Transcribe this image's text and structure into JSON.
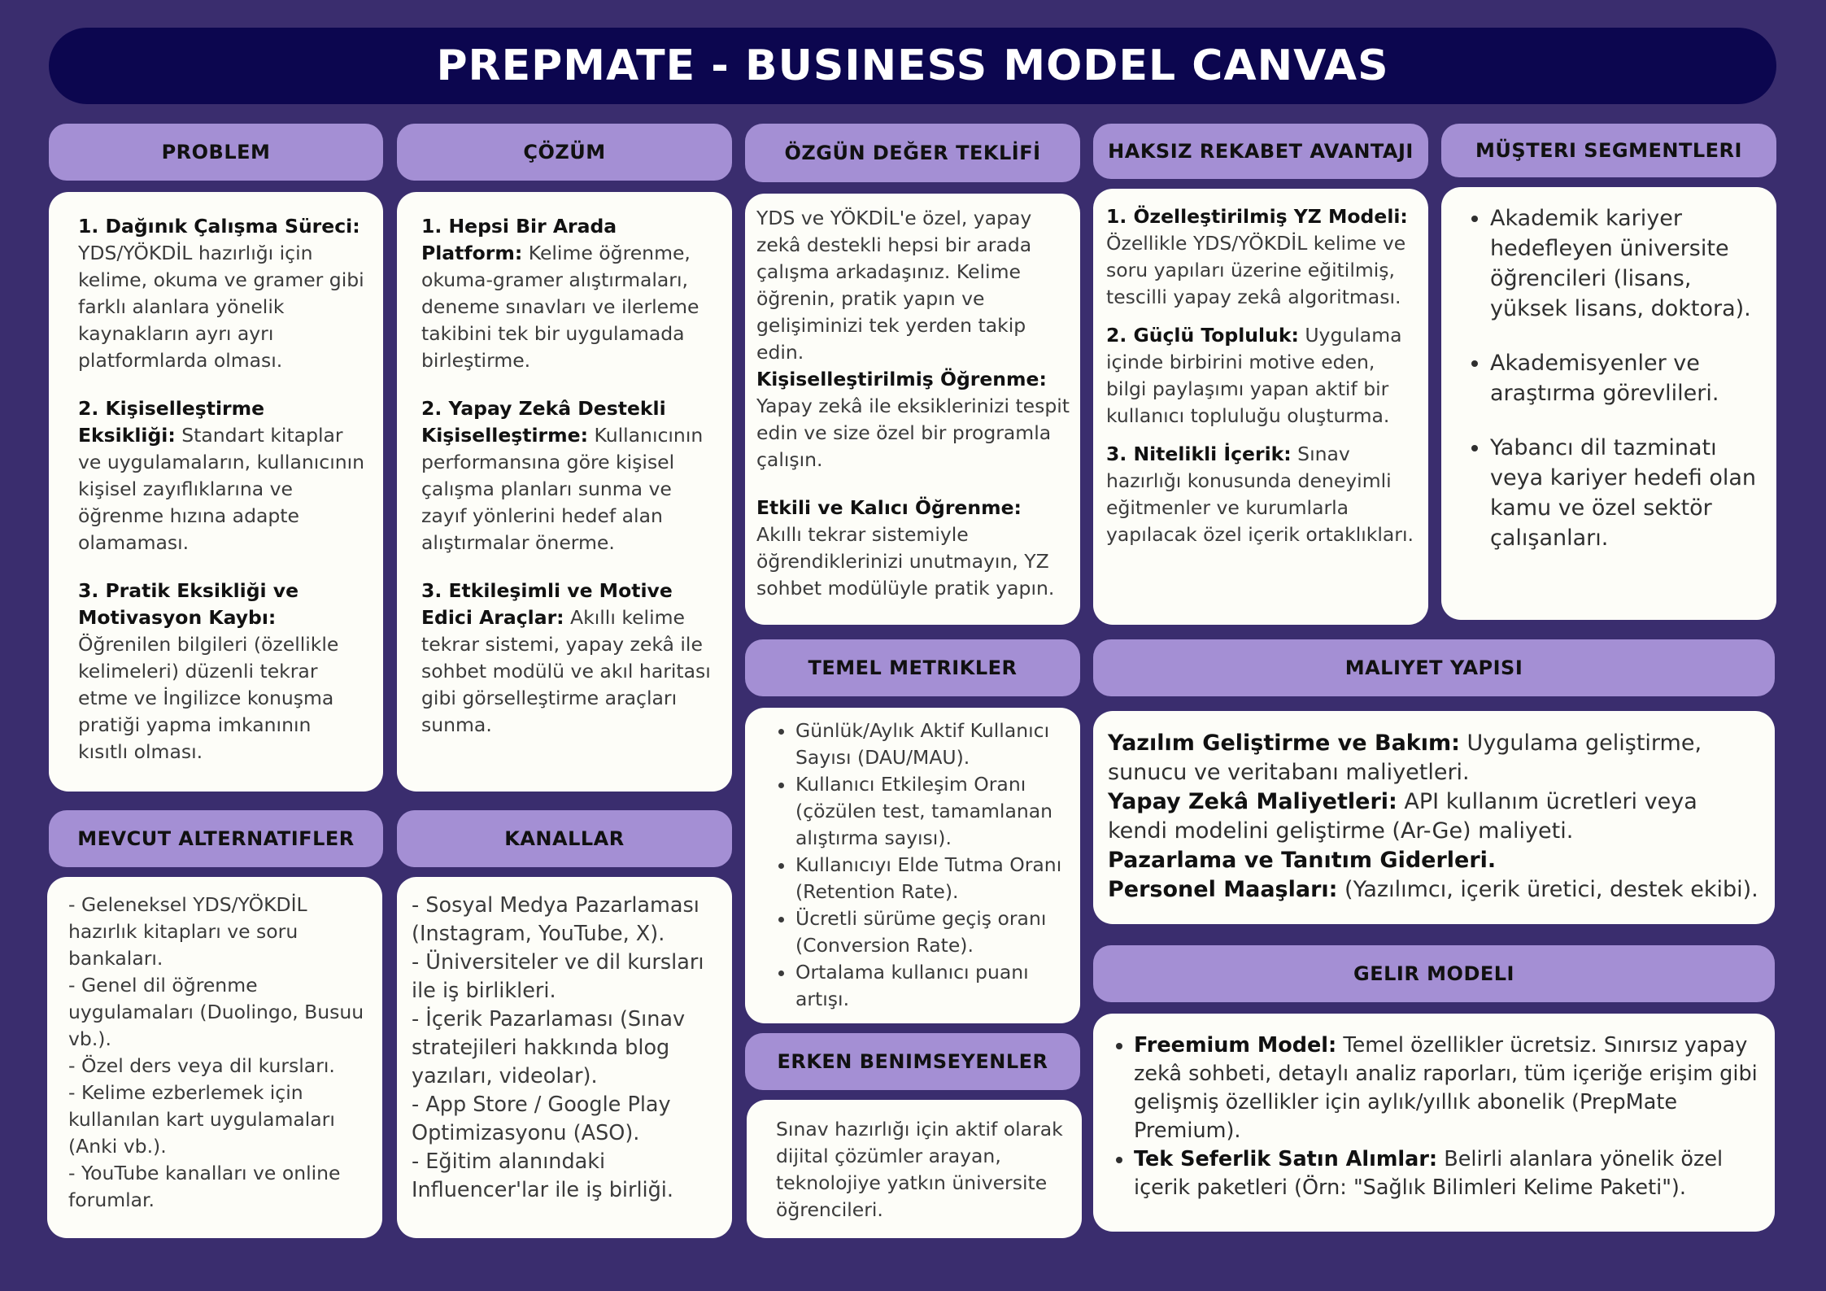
{
  "title": "PREPMATE - BUSINESS MODEL CANVAS",
  "colors": {
    "background": "#3a2d6e",
    "title_bar": "#0c064f",
    "header": "#a48fd4",
    "card": "#fdfdf8"
  },
  "problem": {
    "header": "PROBLEM",
    "items": [
      {
        "title": "1. Dağınık Çalışma Süreci:",
        "text": "YDS/YÖKDİL hazırlığı için kelime, okuma ve gramer gibi farklı alanlara yönelik kaynakların ayrı ayrı platformlarda olması."
      },
      {
        "title": "2. Kişiselleştirme Eksikliği:",
        "text": "Standart kitaplar ve uygulamaların, kullanıcının kişisel zayıflıklarına ve öğrenme hızına adapte olamaması."
      },
      {
        "title": "3. Pratik Eksikliği ve Motivasyon Kaybı:",
        "text": "Öğrenilen bilgileri (özellikle kelimeleri) düzenli tekrar etme ve İngilizce konuşma pratiği yapma imkanının kısıtlı olması."
      }
    ]
  },
  "solution": {
    "header": "ÇÖZÜM",
    "items": [
      {
        "title": "1. Hepsi Bir Arada Platform:",
        "text": "Kelime öğrenme, okuma-gramer alıştırmaları, deneme sınavları ve ilerleme takibini tek bir uygulamada birleştirme."
      },
      {
        "title": "2. Yapay Zekâ Destekli Kişiselleştirme:",
        "text": "Kullanıcının performansına göre kişisel çalışma planları sunma ve zayıf yönlerini hedef alan alıştırmalar önerme."
      },
      {
        "title": "3. Etkileşimli ve Motive Edici Araçlar:",
        "text": "Akıllı kelime tekrar sistemi, yapay zekâ ile sohbet modülü ve akıl haritası gibi görselleştirme araçları sunma."
      }
    ]
  },
  "uvp": {
    "header": "ÖZGÜN DEĞER TEKLİFİ",
    "intro": "YDS ve YÖKDİL'e özel, yapay zekâ destekli hepsi bir arada çalışma arkadaşınız. Kelime öğrenin, pratik yapın ve gelişiminizi tek yerden takip edin.",
    "items": [
      {
        "title": "Kişiselleştirilmiş Öğrenme:",
        "text": "Yapay zekâ ile eksiklerinizi tespit edin ve size özel bir programla çalışın."
      },
      {
        "title": "Etkili ve Kalıcı Öğrenme:",
        "text": "Akıllı tekrar sistemiyle öğrendiklerinizi unutmayın, YZ sohbet modülüyle pratik yapın."
      }
    ]
  },
  "unfair": {
    "header": "HAKSIZ REKABET AVANTAJI",
    "items": [
      {
        "title": "1. Özelleştirilmiş YZ Modeli:",
        "text": "Özellikle YDS/YÖKDİL kelime ve soru yapıları üzerine eğitilmiş, tescilli yapay zekâ algoritması."
      },
      {
        "title": "2. Güçlü Topluluk:",
        "text": "Uygulama içinde birbirini motive eden, bilgi paylaşımı yapan aktif bir kullanıcı topluluğu oluşturma."
      },
      {
        "title": "3. Nitelikli İçerik:",
        "text": "Sınav hazırlığı konusunda deneyimli eğitmenler ve kurumlarla yapılacak özel içerik ortaklıkları."
      }
    ]
  },
  "segments": {
    "header": "MÜŞTERI SEGMENTLERI",
    "items": [
      "Akademik kariyer hedefleyen üniversite öğrencileri (lisans, yüksek lisans, doktora).",
      "Akademisyenler ve araştırma görevlileri.",
      "Yabancı dil tazminatı veya kariyer hedefi olan kamu ve özel sektör çalışanları."
    ]
  },
  "metrics": {
    "header": "TEMEL METRIKLER",
    "items": [
      "Günlük/Aylık Aktif Kullanıcı Sayısı (DAU/MAU).",
      "Kullanıcı Etkileşim Oranı (çözülen test, tamamlanan alıştırma sayısı).",
      "Kullanıcıyı Elde Tutma Oranı (Retention Rate).",
      "Ücretli sürüme geçiş oranı (Conversion Rate).",
      "Ortalama kullanıcı puanı artışı."
    ]
  },
  "costs": {
    "header": "MALIYET YAPISI",
    "items": [
      {
        "title": "Yazılım Geliştirme ve Bakım:",
        "text": "Uygulama geliştirme, sunucu ve veritabanı maliyetleri."
      },
      {
        "title": "Yapay Zekâ Maliyetleri:",
        "text": "API kullanım ücretleri veya kendi modelini geliştirme (Ar-Ge) maliyeti."
      },
      {
        "title": "Pazarlama ve Tanıtım Giderleri.",
        "text": ""
      },
      {
        "title": "Personel Maaşları:",
        "text": "(Yazılımcı, içerik üretici, destek ekibi)."
      }
    ]
  },
  "alternatives": {
    "header": "MEVCUT ALTERNATIFLER",
    "items": [
      "- Geleneksel YDS/YÖKDİL hazırlık kitapları ve soru bankaları.",
      "- Genel dil öğrenme uygulamaları (Duolingo, Busuu vb.).",
      "- Özel ders veya dil kursları.",
      "- Kelime ezberlemek için kullanılan kart uygulamaları (Anki vb.).",
      "- YouTube kanalları ve online forumlar."
    ]
  },
  "channels": {
    "header": "KANALLAR",
    "items": [
      "- Sosyal Medya Pazarlaması (Instagram, YouTube, X).",
      "- Üniversiteler ve dil kursları ile iş birlikleri.",
      "- İçerik Pazarlaması (Sınav stratejileri hakkında blog yazıları, videolar).",
      "- App Store / Google Play Optimizasyonu (ASO).",
      "- Eğitim alanındaki Influencer'lar ile iş birliği."
    ]
  },
  "early": {
    "header": "ERKEN BENIMSEYENLER",
    "text": "Sınav hazırlığı için aktif olarak dijital çözümler arayan, teknolojiye yatkın üniversite öğrencileri."
  },
  "revenue": {
    "header": "GELIR MODELI",
    "items": [
      {
        "title": "Freemium Model:",
        "text": "Temel özellikler ücretsiz. Sınırsız yapay zekâ sohbeti, detaylı analiz raporları, tüm içeriğe erişim gibi gelişmiş özellikler için aylık/yıllık abonelik (PrepMate Premium)."
      },
      {
        "title": "Tek Seferlik Satın Alımlar:",
        "text": "Belirli alanlara yönelik özel içerik paketleri (Örn: \"Sağlık Bilimleri Kelime Paketi\")."
      }
    ]
  }
}
